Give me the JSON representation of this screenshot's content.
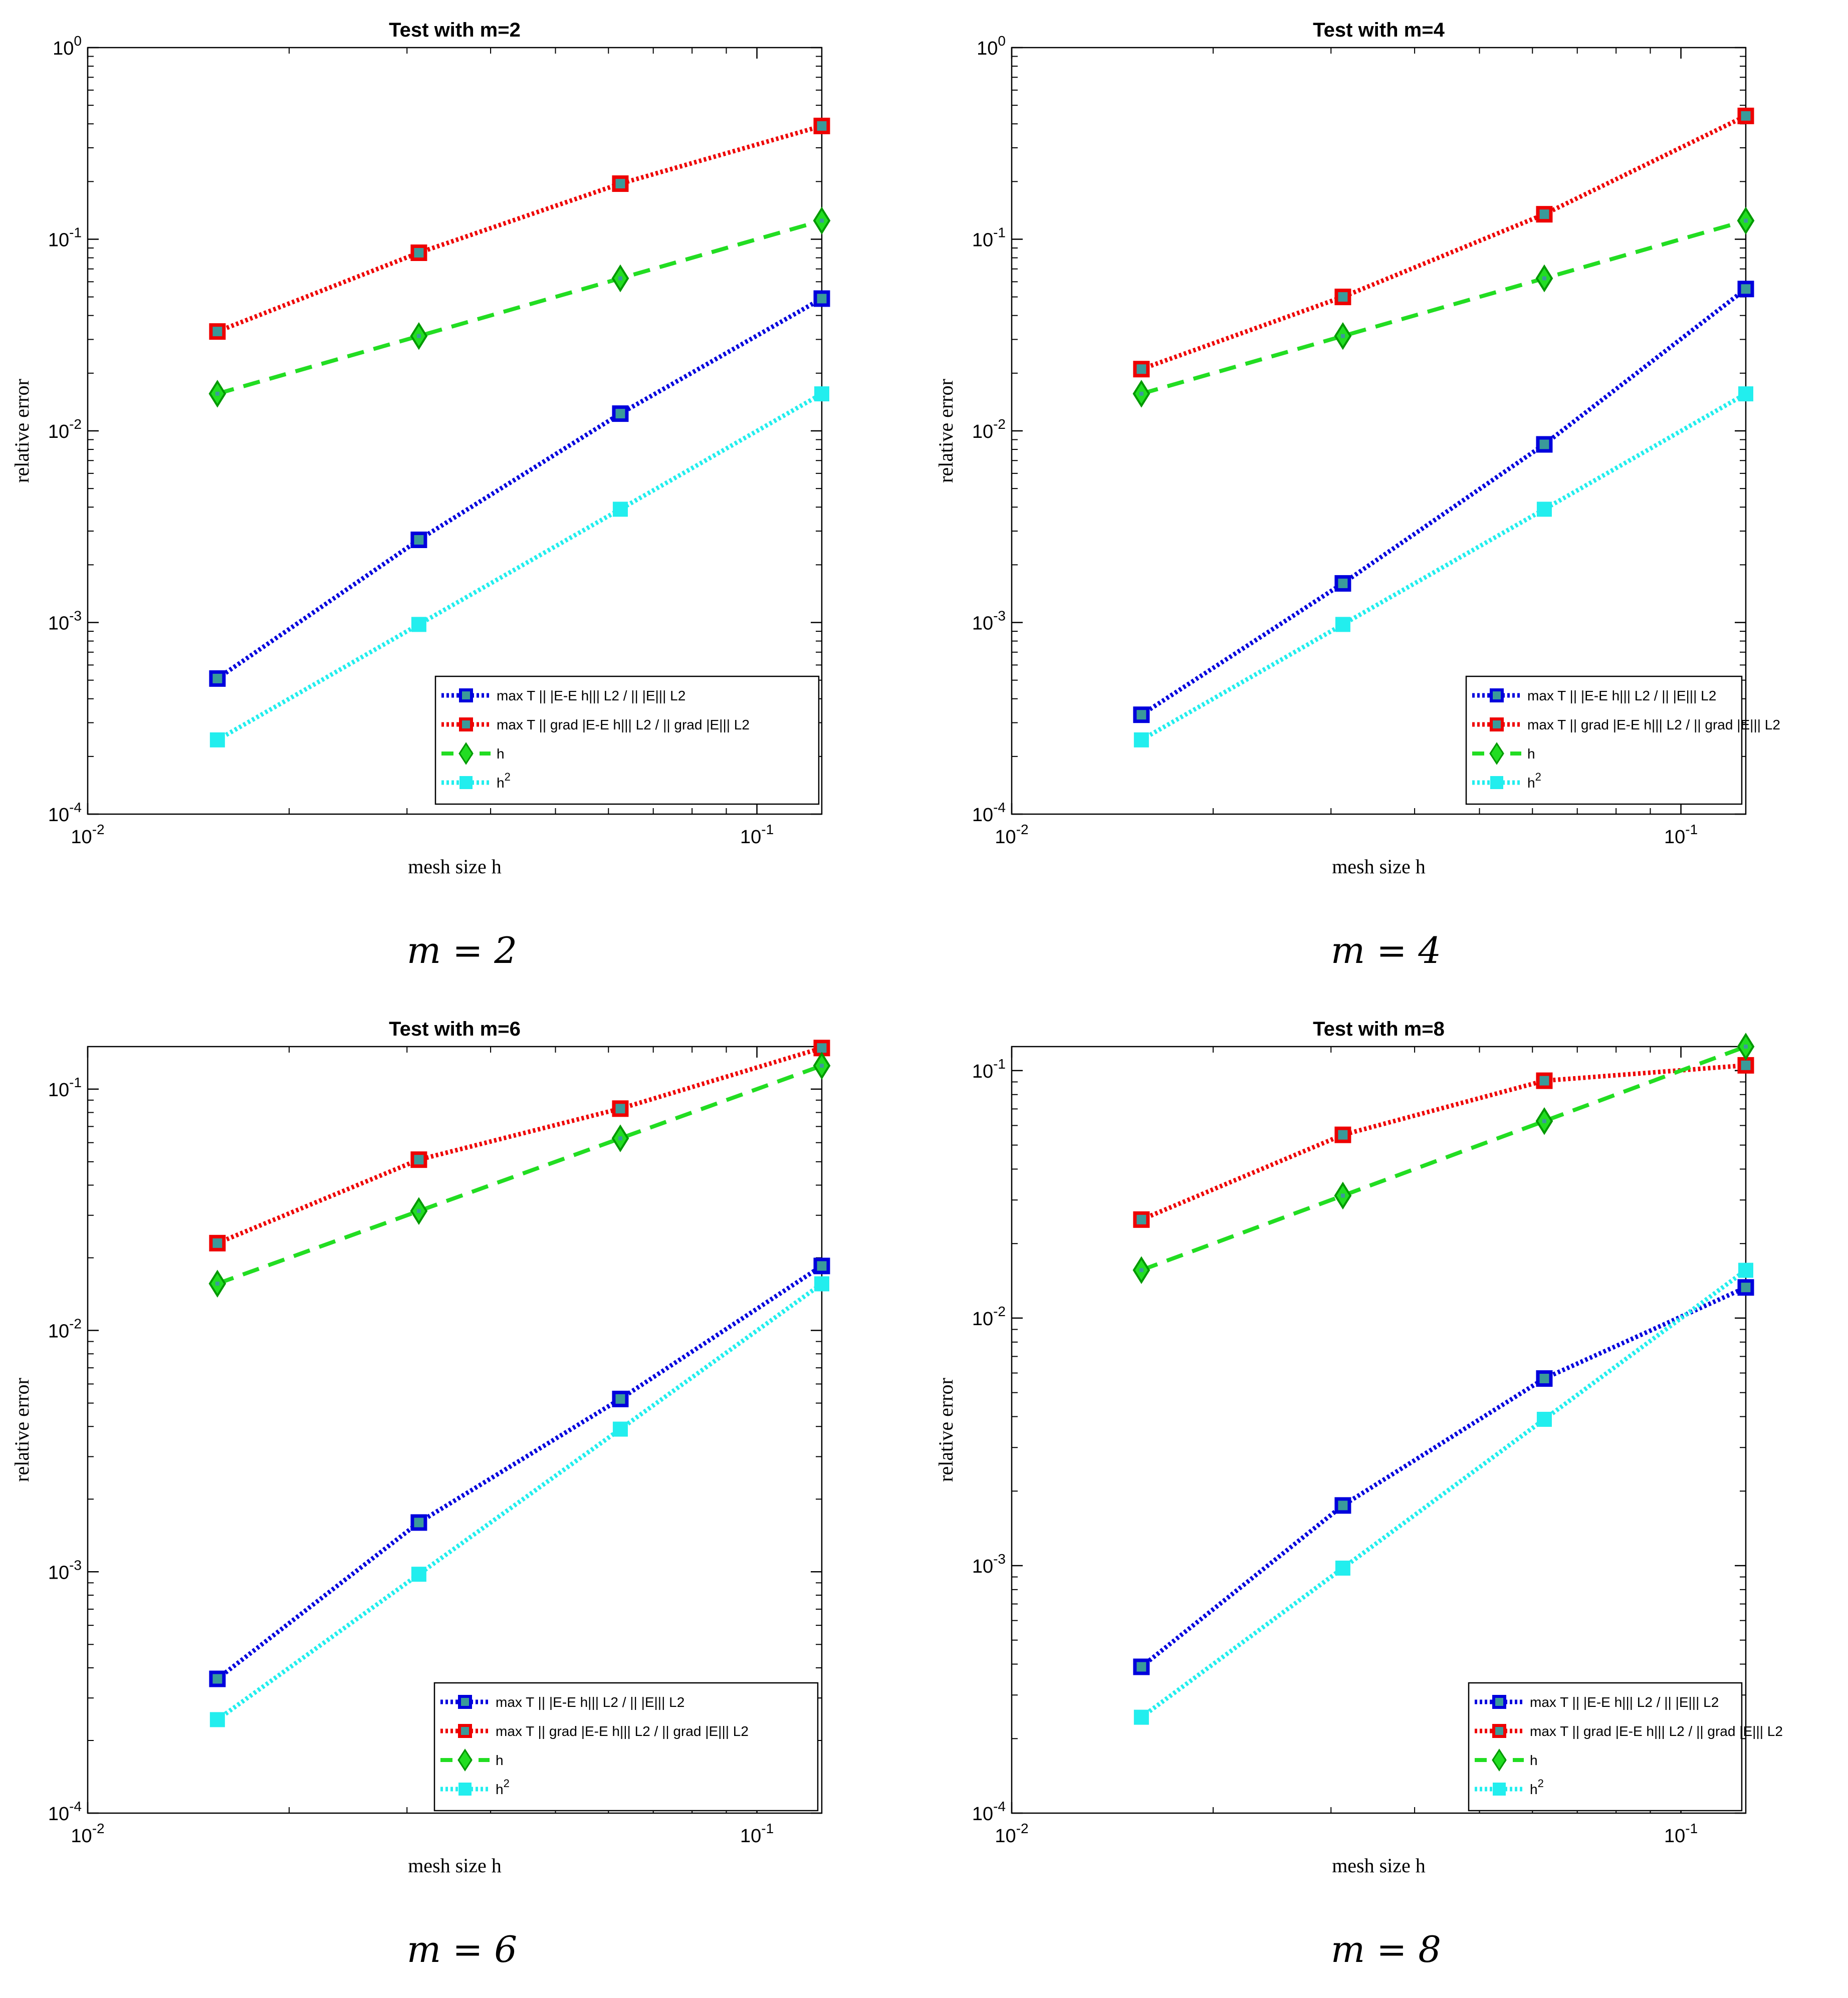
{
  "colors": {
    "blue": "#0000dd",
    "red": "#ee0000",
    "green": "#22dd22",
    "cyan": "#22eeee",
    "axis": "#000000",
    "marker_fill": "#3a9a9a"
  },
  "chart_data": [
    {
      "type": "line",
      "title": "Test with m=2",
      "xlabel": "mesh size h",
      "ylabel": "relative error",
      "xscale": "log",
      "yscale": "log",
      "xlim": [
        0.01,
        0.125
      ],
      "ylim": [
        0.0001,
        1
      ],
      "x_ticks": [
        "10-2",
        "10-1"
      ],
      "y_ticks": [
        "10-4",
        "10-3",
        "10-2",
        "10-1",
        "100"
      ],
      "x": [
        0.015625,
        0.03125,
        0.0625,
        0.125
      ],
      "series": [
        {
          "name": "blue",
          "values": [
            0.00051,
            0.0027,
            0.0123,
            0.049
          ]
        },
        {
          "name": "red",
          "values": [
            0.033,
            0.085,
            0.195,
            0.39
          ]
        },
        {
          "name": "h",
          "values": [
            0.015625,
            0.03125,
            0.0625,
            0.125
          ]
        },
        {
          "name": "h2",
          "values": [
            0.000244,
            0.000977,
            0.0039,
            0.0156
          ]
        }
      ],
      "caption": "m = 2",
      "legend_position": "bottom-right"
    },
    {
      "type": "line",
      "title": "Test with m=4",
      "xlabel": "mesh size h",
      "ylabel": "relative error",
      "xscale": "log",
      "yscale": "log",
      "xlim": [
        0.01,
        0.125
      ],
      "ylim": [
        0.0001,
        1
      ],
      "x_ticks": [
        "10-2",
        "10-1"
      ],
      "y_ticks": [
        "10-4",
        "10-3",
        "10-2",
        "10-1",
        "100"
      ],
      "x": [
        0.015625,
        0.03125,
        0.0625,
        0.125
      ],
      "series": [
        {
          "name": "blue",
          "values": [
            0.00033,
            0.0016,
            0.0085,
            0.055
          ]
        },
        {
          "name": "red",
          "values": [
            0.021,
            0.05,
            0.135,
            0.44
          ]
        },
        {
          "name": "h",
          "values": [
            0.015625,
            0.03125,
            0.0625,
            0.125
          ]
        },
        {
          "name": "h2",
          "values": [
            0.000244,
            0.000977,
            0.0039,
            0.0156
          ]
        }
      ],
      "caption": "m = 4",
      "legend_position": "bottom-right"
    },
    {
      "type": "line",
      "title": "Test with m=6",
      "xlabel": "mesh size h",
      "ylabel": "relative error",
      "xscale": "log",
      "yscale": "log",
      "xlim": [
        0.01,
        0.125
      ],
      "ylim": [
        0.0001,
        0.15
      ],
      "x_ticks": [
        "10-2",
        "10-1"
      ],
      "y_ticks": [
        "10-4",
        "10-3",
        "10-2",
        "10-1"
      ],
      "x": [
        0.015625,
        0.03125,
        0.0625,
        0.125
      ],
      "series": [
        {
          "name": "blue",
          "values": [
            0.00036,
            0.0016,
            0.0052,
            0.0185
          ]
        },
        {
          "name": "red",
          "values": [
            0.023,
            0.051,
            0.083,
            0.148
          ]
        },
        {
          "name": "h",
          "values": [
            0.015625,
            0.03125,
            0.0625,
            0.125
          ]
        },
        {
          "name": "h2",
          "values": [
            0.000244,
            0.000977,
            0.0039,
            0.0156
          ]
        }
      ],
      "caption": "m = 6",
      "legend_position": "bottom-right"
    },
    {
      "type": "line",
      "title": "Test with m=8",
      "xlabel": "mesh size h",
      "ylabel": "relative error",
      "xscale": "log",
      "yscale": "log",
      "xlim": [
        0.01,
        0.125
      ],
      "ylim": [
        0.0001,
        0.125
      ],
      "x_ticks": [
        "10-2",
        "10-1"
      ],
      "y_ticks": [
        "10-4",
        "10-3",
        "10-2",
        "10-1"
      ],
      "x": [
        0.015625,
        0.03125,
        0.0625,
        0.125
      ],
      "series": [
        {
          "name": "blue",
          "values": [
            0.00039,
            0.00175,
            0.0057,
            0.0133
          ]
        },
        {
          "name": "red",
          "values": [
            0.025,
            0.055,
            0.091,
            0.105
          ]
        },
        {
          "name": "h",
          "values": [
            0.015625,
            0.03125,
            0.0625,
            0.125
          ]
        },
        {
          "name": "h2",
          "values": [
            0.000244,
            0.000977,
            0.0039,
            0.0156
          ]
        }
      ],
      "caption": "m = 8",
      "legend_position": "bottom-right"
    }
  ],
  "legend": {
    "blue": "max T || |E-E h||| L2 / || |E||| L2",
    "red": "max T || grad |E-E h||| L2 / || grad |E||| L2",
    "green": "h",
    "cyan": "h2"
  }
}
